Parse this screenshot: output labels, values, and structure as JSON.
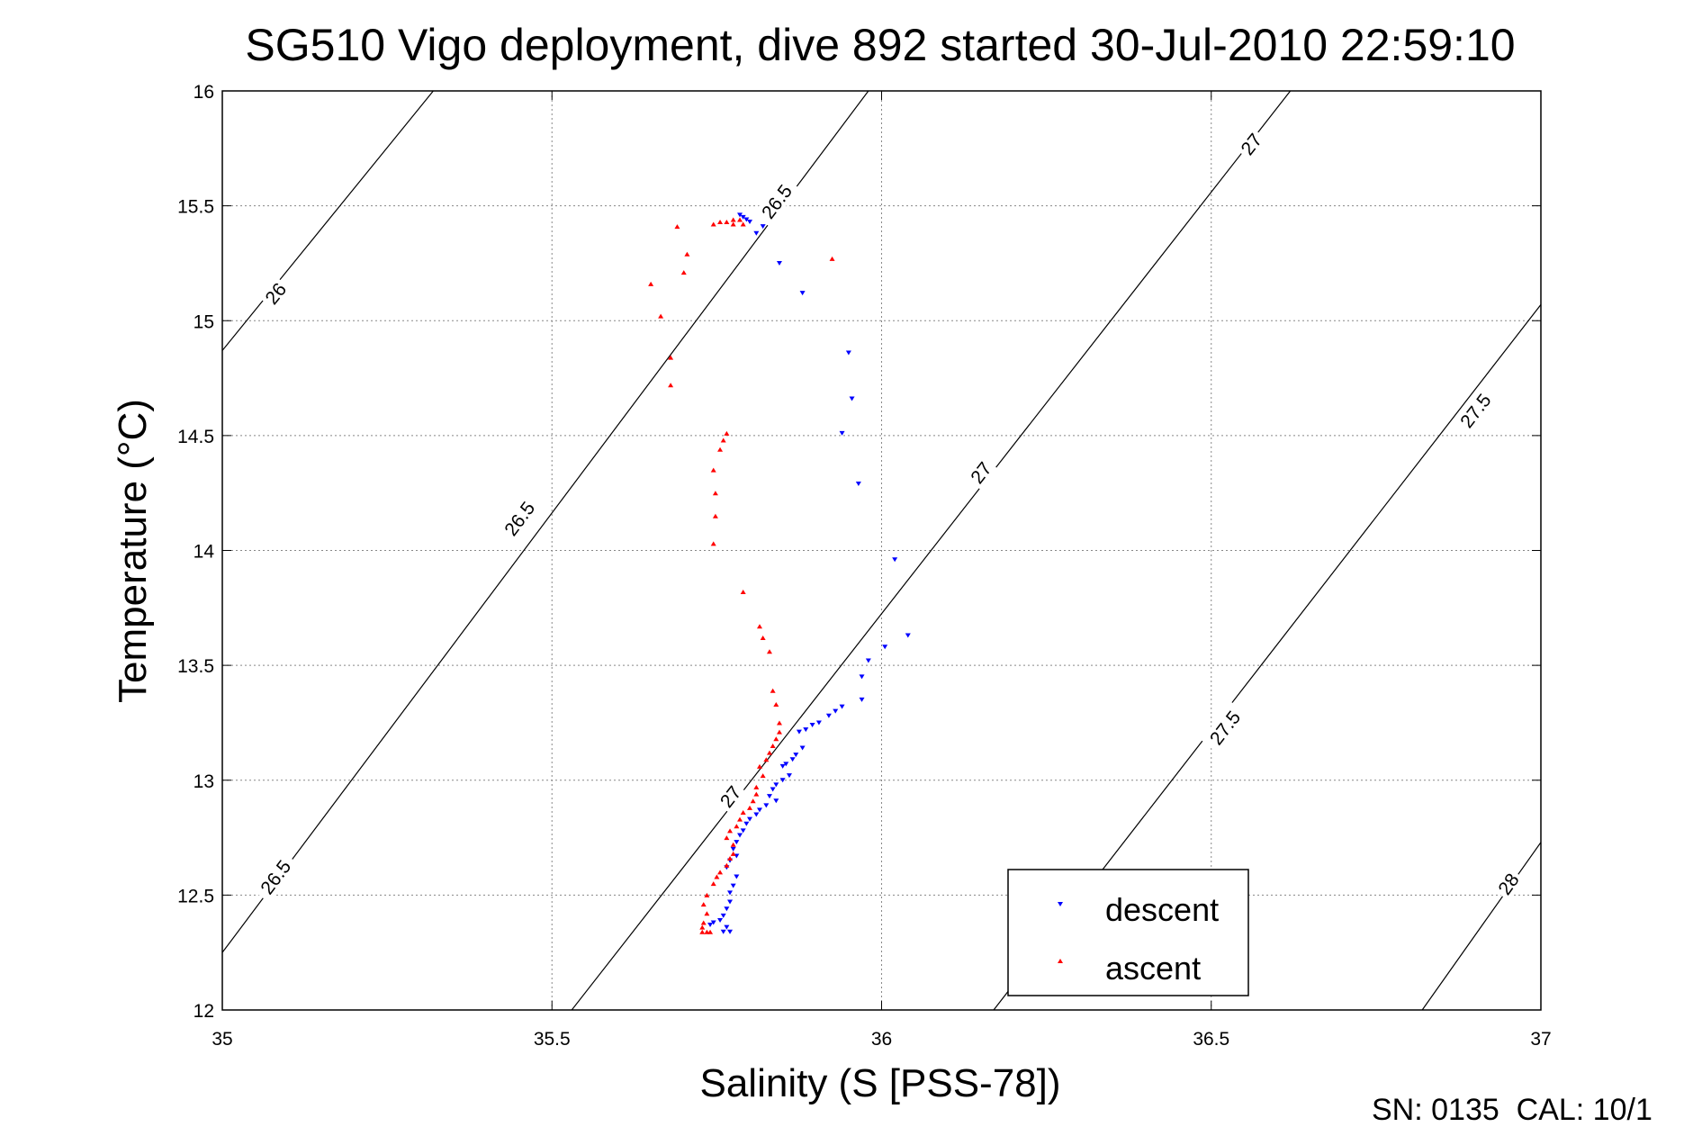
{
  "chart_data": {
    "type": "scatter",
    "title": "SG510 Vigo deployment, dive 892 started 30-Jul-2010 22:59:10",
    "xlabel": "Salinity (S [PSS-78])",
    "ylabel": "Temperature (°C)",
    "xlim": [
      35,
      37
    ],
    "ylim": [
      12,
      16
    ],
    "xticks": [
      35,
      35.5,
      36,
      36.5,
      37
    ],
    "yticks": [
      12,
      12.5,
      13,
      13.5,
      14,
      14.5,
      15,
      15.5,
      16
    ],
    "grid": true,
    "legend_position": "bottom-right",
    "footer": "SN: 0135  CAL: 10/1",
    "density_contours": [
      {
        "sigma": 26,
        "label": "26",
        "line": [
          [
            35.0,
            14.87
          ],
          [
            35.32,
            16.0
          ]
        ],
        "labels_at": [
          [
            35.08,
            15.12
          ]
        ]
      },
      {
        "sigma": 26.5,
        "label": "26.5",
        "line": [
          [
            35.0,
            12.25
          ],
          [
            35.98,
            16.0
          ]
        ],
        "labels_at": [
          [
            35.08,
            12.58
          ],
          [
            35.45,
            14.14
          ],
          [
            35.84,
            15.52
          ]
        ]
      },
      {
        "sigma": 27,
        "label": "27",
        "line": [
          [
            35.53,
            12.0
          ],
          [
            36.62,
            16.0
          ]
        ],
        "labels_at": [
          [
            35.77,
            12.93
          ],
          [
            36.15,
            14.34
          ],
          [
            36.56,
            15.77
          ]
        ]
      },
      {
        "sigma": 27.5,
        "label": "27.5",
        "line": [
          [
            36.17,
            12.0
          ],
          [
            37.0,
            15.07
          ]
        ],
        "labels_at": [
          [
            36.52,
            13.23
          ],
          [
            36.9,
            14.61
          ]
        ]
      },
      {
        "sigma": 28,
        "label": "28",
        "line": [
          [
            36.82,
            12.0
          ],
          [
            37.0,
            12.73
          ]
        ],
        "labels_at": [
          [
            36.95,
            12.55
          ]
        ]
      }
    ],
    "series": [
      {
        "name": "descent",
        "color": "#0000ff",
        "marker": "triangle-down",
        "points": [
          [
            35.785,
            15.46
          ],
          [
            35.79,
            15.45
          ],
          [
            35.795,
            15.44
          ],
          [
            35.8,
            15.43
          ],
          [
            35.81,
            15.38
          ],
          [
            35.82,
            15.41
          ],
          [
            35.845,
            15.25
          ],
          [
            35.88,
            15.12
          ],
          [
            35.95,
            14.86
          ],
          [
            35.955,
            14.66
          ],
          [
            35.94,
            14.51
          ],
          [
            35.965,
            14.29
          ],
          [
            36.02,
            13.96
          ],
          [
            36.04,
            13.63
          ],
          [
            36.005,
            13.58
          ],
          [
            35.98,
            13.52
          ],
          [
            35.97,
            13.45
          ],
          [
            35.97,
            13.35
          ],
          [
            35.94,
            13.32
          ],
          [
            35.93,
            13.3
          ],
          [
            35.92,
            13.28
          ],
          [
            35.905,
            13.25
          ],
          [
            35.895,
            13.24
          ],
          [
            35.885,
            13.22
          ],
          [
            35.875,
            13.21
          ],
          [
            35.88,
            13.14
          ],
          [
            35.87,
            13.11
          ],
          [
            35.865,
            13.09
          ],
          [
            35.855,
            13.07
          ],
          [
            35.85,
            13.06
          ],
          [
            35.86,
            13.02
          ],
          [
            35.85,
            13.0
          ],
          [
            35.84,
            12.98
          ],
          [
            35.835,
            12.96
          ],
          [
            35.83,
            12.93
          ],
          [
            35.84,
            12.91
          ],
          [
            35.825,
            12.89
          ],
          [
            35.815,
            12.87
          ],
          [
            35.81,
            12.85
          ],
          [
            35.8,
            12.83
          ],
          [
            35.795,
            12.81
          ],
          [
            35.79,
            12.78
          ],
          [
            35.785,
            12.76
          ],
          [
            35.78,
            12.73
          ],
          [
            35.775,
            12.7
          ],
          [
            35.78,
            12.67
          ],
          [
            35.77,
            12.65
          ],
          [
            35.765,
            12.62
          ],
          [
            35.78,
            12.58
          ],
          [
            35.775,
            12.54
          ],
          [
            35.77,
            12.51
          ],
          [
            35.77,
            12.47
          ],
          [
            35.765,
            12.44
          ],
          [
            35.76,
            12.41
          ],
          [
            35.755,
            12.39
          ],
          [
            35.745,
            12.38
          ],
          [
            35.74,
            12.37
          ],
          [
            35.765,
            12.36
          ],
          [
            35.76,
            12.34
          ],
          [
            35.77,
            12.34
          ]
        ]
      },
      {
        "name": "ascent",
        "color": "#ff0000",
        "marker": "triangle-up",
        "points": [
          [
            35.74,
            12.34
          ],
          [
            35.735,
            12.34
          ],
          [
            35.728,
            12.34
          ],
          [
            35.728,
            12.36
          ],
          [
            35.73,
            12.38
          ],
          [
            35.735,
            12.42
          ],
          [
            35.73,
            12.46
          ],
          [
            35.735,
            12.5
          ],
          [
            35.745,
            12.55
          ],
          [
            35.75,
            12.58
          ],
          [
            35.755,
            12.6
          ],
          [
            35.765,
            12.63
          ],
          [
            35.77,
            12.66
          ],
          [
            35.775,
            12.68
          ],
          [
            35.775,
            12.72
          ],
          [
            35.765,
            12.75
          ],
          [
            35.77,
            12.78
          ],
          [
            35.78,
            12.8
          ],
          [
            35.785,
            12.83
          ],
          [
            35.79,
            12.86
          ],
          [
            35.8,
            12.88
          ],
          [
            35.805,
            12.91
          ],
          [
            35.81,
            12.94
          ],
          [
            35.81,
            12.97
          ],
          [
            35.82,
            13.02
          ],
          [
            35.815,
            13.06
          ],
          [
            35.825,
            13.09
          ],
          [
            35.83,
            13.12
          ],
          [
            35.835,
            13.15
          ],
          [
            35.84,
            13.18
          ],
          [
            35.845,
            13.21
          ],
          [
            35.845,
            13.25
          ],
          [
            35.84,
            13.33
          ],
          [
            35.835,
            13.39
          ],
          [
            35.83,
            13.56
          ],
          [
            35.82,
            13.62
          ],
          [
            35.815,
            13.67
          ],
          [
            35.79,
            13.82
          ],
          [
            35.745,
            14.03
          ],
          [
            35.748,
            14.15
          ],
          [
            35.748,
            14.25
          ],
          [
            35.745,
            14.35
          ],
          [
            35.755,
            14.44
          ],
          [
            35.76,
            14.48
          ],
          [
            35.765,
            14.51
          ],
          [
            35.68,
            14.72
          ],
          [
            35.68,
            14.84
          ],
          [
            35.665,
            15.02
          ],
          [
            35.65,
            15.16
          ],
          [
            35.7,
            15.21
          ],
          [
            35.705,
            15.29
          ],
          [
            35.69,
            15.41
          ],
          [
            35.745,
            15.42
          ],
          [
            35.755,
            15.43
          ],
          [
            35.765,
            15.43
          ],
          [
            35.775,
            15.44
          ],
          [
            35.785,
            15.44
          ],
          [
            35.775,
            15.42
          ],
          [
            35.79,
            15.42
          ],
          [
            35.925,
            15.27
          ]
        ]
      }
    ]
  }
}
